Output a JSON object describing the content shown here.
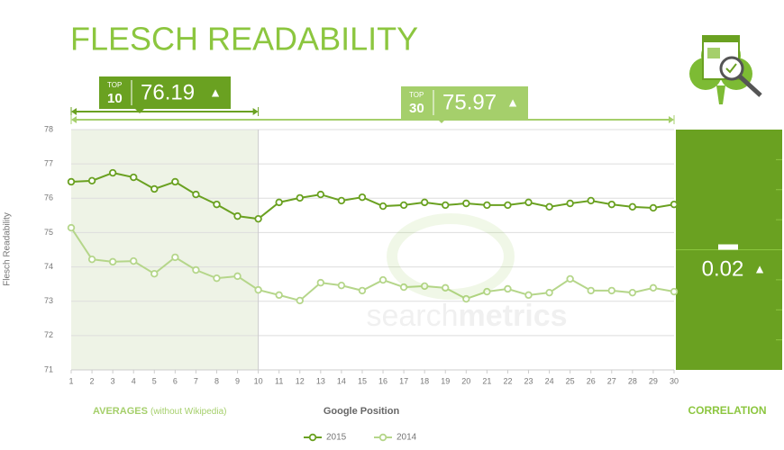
{
  "chart_data": {
    "type": "line",
    "title": "FLESCH READABILITY",
    "y_label": "Flesch Readability",
    "x_label": "Google Position",
    "left_caption": "AVERAGES",
    "left_caption_note": "(without Wikipedia)",
    "right_caption": "CORRELATION",
    "correlation": {
      "value": 0.02,
      "arrow": "▲"
    },
    "top10": {
      "label": "TOP",
      "rank": 10,
      "value": 76.19,
      "arrow": "▲"
    },
    "top30": {
      "label": "TOP",
      "rank": 30,
      "value": 75.97,
      "arrow": "▲"
    },
    "watermark": {
      "light": "search",
      "bold": "metrics"
    },
    "x": [
      1,
      2,
      3,
      4,
      5,
      6,
      7,
      8,
      9,
      10,
      11,
      12,
      13,
      14,
      15,
      16,
      17,
      18,
      19,
      20,
      21,
      22,
      23,
      24,
      25,
      26,
      27,
      28,
      29,
      30
    ],
    "xlim": [
      1,
      30
    ],
    "xticks": [
      1,
      2,
      3,
      4,
      5,
      6,
      7,
      8,
      9,
      10,
      11,
      12,
      13,
      14,
      15,
      16,
      17,
      18,
      19,
      20,
      21,
      22,
      23,
      24,
      25,
      26,
      27,
      28,
      29,
      30
    ],
    "ylim": [
      71,
      78
    ],
    "yticks": [
      71,
      72,
      73,
      74,
      75,
      76,
      77,
      78
    ],
    "grid": true,
    "legend": "bottom",
    "series": [
      {
        "name": "2015",
        "color": "#6aa121",
        "values": [
          76.48,
          76.51,
          76.74,
          76.61,
          76.27,
          76.48,
          76.11,
          75.82,
          75.48,
          75.4,
          75.88,
          76.01,
          76.11,
          75.93,
          76.03,
          75.77,
          75.8,
          75.88,
          75.8,
          75.85,
          75.8,
          75.8,
          75.88,
          75.75,
          75.85,
          75.93,
          75.82,
          75.75,
          75.72,
          75.82
        ]
      },
      {
        "name": "2014",
        "color": "#b5d68a",
        "values": [
          75.14,
          74.22,
          74.15,
          74.17,
          73.8,
          74.28,
          73.91,
          73.67,
          73.73,
          73.33,
          73.18,
          73.02,
          73.54,
          73.46,
          73.31,
          73.62,
          73.41,
          73.44,
          73.39,
          73.07,
          73.28,
          73.36,
          73.18,
          73.25,
          73.65,
          73.31,
          73.31,
          73.25,
          73.39,
          73.28
        ]
      }
    ]
  }
}
